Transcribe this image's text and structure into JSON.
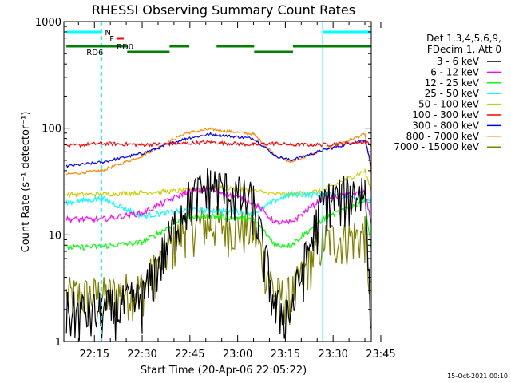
{
  "chart_data": {
    "type": "line",
    "title": "RHESSI Observing Summary Count Rates",
    "xlabel": "Start Time (20-Apr-06 22:05:22)",
    "ylabel": "Count Rate (s⁻¹ detector⁻¹)",
    "scale": "log",
    "x_unit": "minutes of day",
    "xlim": [
      1325.4,
      1422.0
    ],
    "ylim": [
      1,
      1000
    ],
    "x_ticks": [
      {
        "label": "22:15",
        "value": 1335
      },
      {
        "label": "22:30",
        "value": 1350
      },
      {
        "label": "22:45",
        "value": 1365
      },
      {
        "label": "23:00",
        "value": 1380
      },
      {
        "label": "23:15",
        "value": 1395
      },
      {
        "label": "23:30",
        "value": 1410
      },
      {
        "label": "23:45",
        "value": 1425
      }
    ],
    "y_ticks": [
      {
        "label": "1",
        "value": 1
      },
      {
        "label": "10",
        "value": 10
      },
      {
        "label": "100",
        "value": 100
      },
      {
        "label": "1000",
        "value": 1000
      }
    ],
    "legend_header": [
      "Det 1,3,4,5,6,9,",
      "FDecim 1, Att 0"
    ],
    "legend_position": "right",
    "footer_date": "15-Oct-2021 00:10",
    "time_segments": [
      1326.2,
      1337.3,
      1350.0,
      1363.6,
      1371.5,
      1385.0,
      1392.0,
      1396.7,
      1406.7,
      1420.0,
      1422.0
    ],
    "night_intervals": [
      [
        1325.4,
        1337.3
      ],
      [
        1406.7,
        1422.0
      ]
    ],
    "series": [
      {
        "name": "3 - 6 keV",
        "color": "#000000",
        "noise": 0.55,
        "values": [
          1.9,
          1.9,
          2.5,
          20,
          30,
          20,
          2.0,
          2.0,
          20,
          27,
          1.8
        ]
      },
      {
        "name": "6 - 12 keV",
        "color": "#ff00ff",
        "noise": 0.06,
        "values": [
          14,
          14,
          16,
          25,
          27,
          20,
          13,
          13,
          22,
          25,
          13
        ]
      },
      {
        "name": "12 - 25 keV",
        "color": "#00ff00",
        "noise": 0.06,
        "values": [
          7.6,
          7.8,
          8.5,
          14.5,
          15,
          14,
          8,
          8,
          14,
          21,
          7.6
        ]
      },
      {
        "name": "25 - 50 keV",
        "color": "#00ffff",
        "noise": 0.06,
        "values": [
          20,
          22,
          15,
          17,
          17,
          16,
          21,
          24,
          24,
          22,
          21
        ]
      },
      {
        "name": "50 - 100 keV",
        "color": "#cccc00",
        "noise": 0.05,
        "values": [
          24,
          24,
          25,
          26,
          28,
          26,
          24,
          24,
          26,
          40,
          26
        ]
      },
      {
        "name": "100 - 300 keV",
        "color": "#ff0000",
        "noise": 0.04,
        "values": [
          68,
          72,
          70,
          72,
          74,
          70,
          72,
          70,
          70,
          74,
          70
        ]
      },
      {
        "name": "300 - 800 keV",
        "color": "#0000ff",
        "noise": 0.03,
        "values": [
          44,
          48,
          58,
          80,
          88,
          80,
          55,
          50,
          62,
          78,
          45
        ]
      },
      {
        "name": "800 - 7000 keV",
        "color": "#ff8800",
        "noise": 0.03,
        "values": [
          37,
          40,
          55,
          90,
          98,
          88,
          55,
          48,
          62,
          88,
          38
        ]
      },
      {
        "name": "7000 - 15000 keV",
        "color": "#808000",
        "noise": 0.5,
        "values": [
          2.7,
          2.7,
          3.2,
          12,
          13,
          11,
          2.7,
          2.7,
          9,
          10,
          2.5
        ]
      }
    ],
    "annotations": {
      "N_label": "N",
      "F_label": "F",
      "RD0_label": "RD0",
      "RD6_label": "RD6",
      "N_color": "#00ffff",
      "F_color": "#ff0000",
      "RD_color": "#008000",
      "N_intervals": [
        [
          1326.2,
          1337.3
        ],
        [
          1406.7,
          1422.0
        ]
      ],
      "F_interval": [
        1342.2,
        1344.2
      ],
      "RD0_intervals": [
        [
          1326.2,
          1345.3
        ],
        [
          1358.6,
          1364.8
        ],
        [
          1373.4,
          1385.2
        ],
        [
          1397.4,
          1422.0
        ]
      ],
      "RD6_intervals": [
        [
          1345.3,
          1358.6
        ],
        [
          1385.2,
          1397.4
        ]
      ]
    }
  }
}
